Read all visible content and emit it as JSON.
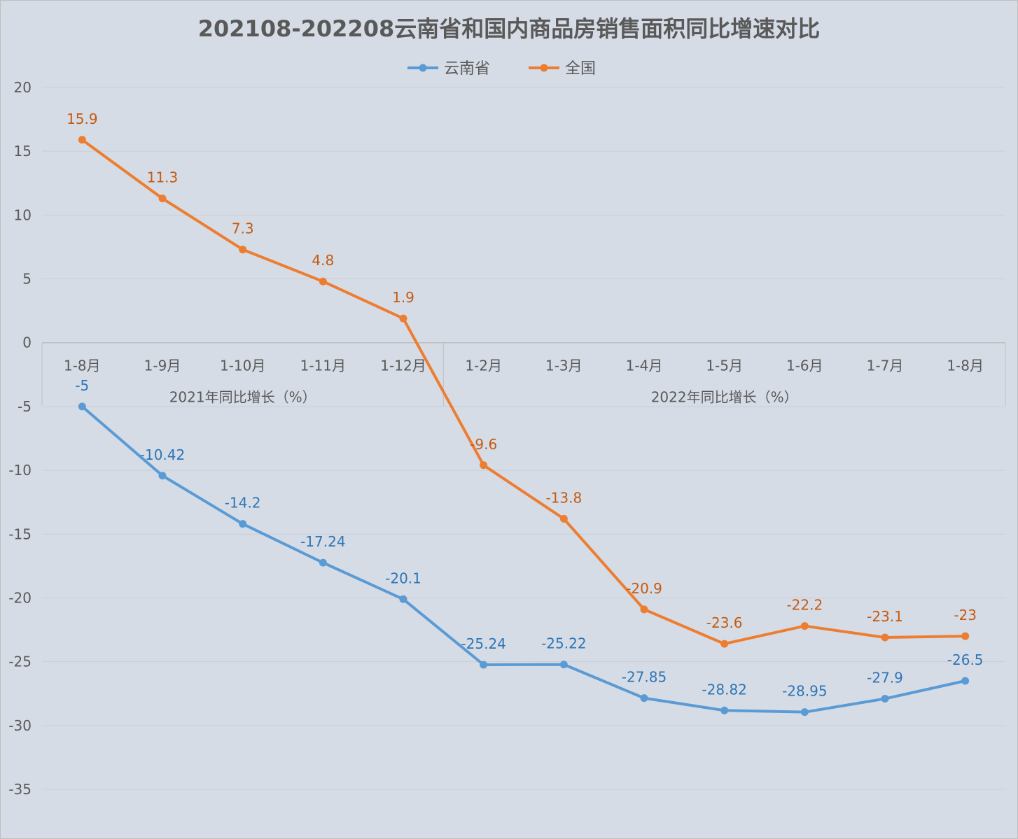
{
  "chart_data": {
    "type": "line",
    "title": "202108-202208云南省和国内商品房销售面积同比增速对比",
    "categories": [
      "1-8月",
      "1-9月",
      "1-10月",
      "1-11月",
      "1-12月",
      "1-2月",
      "1-3月",
      "1-4月",
      "1-5月",
      "1-6月",
      "1-7月",
      "1-8月"
    ],
    "groups": [
      {
        "label": "2021年同比增长（%）",
        "count": 5
      },
      {
        "label": "2022年同比增长（%）",
        "count": 7
      }
    ],
    "series": [
      {
        "name": "云南省",
        "color": "#5b9bd5",
        "label_color": "#2e75b6",
        "values": [
          -5,
          -10.42,
          -14.2,
          -17.24,
          -20.1,
          -25.24,
          -25.22,
          -27.85,
          -28.82,
          -28.95,
          -27.9,
          -26.5
        ],
        "labels": [
          "-5",
          "-10.42",
          "-14.2",
          "-17.24",
          "-20.1",
          "-25.24",
          "-25.22",
          "-27.85",
          "-28.82",
          "-28.95",
          "-27.9",
          "-26.5"
        ]
      },
      {
        "name": "全国",
        "color": "#ed7d31",
        "label_color": "#c55a11",
        "values": [
          15.9,
          11.3,
          7.3,
          4.8,
          1.9,
          -9.6,
          -13.8,
          -20.9,
          -23.6,
          -22.2,
          -23.1,
          -23
        ],
        "labels": [
          "15.9",
          "11.3",
          "7.3",
          "4.8",
          "1.9",
          "-9.6",
          "-13.8",
          "-20.9",
          "-23.6",
          "-22.2",
          "-23.1",
          "-23"
        ]
      }
    ],
    "ylim": [
      -35,
      20
    ],
    "yticks": [
      "20",
      "15",
      "10",
      "5",
      "0",
      "-5",
      "-10",
      "-15",
      "-20",
      "-25",
      "-30",
      "-35"
    ],
    "grid": true,
    "legend": "top-center",
    "xlabel": "",
    "ylabel": ""
  }
}
